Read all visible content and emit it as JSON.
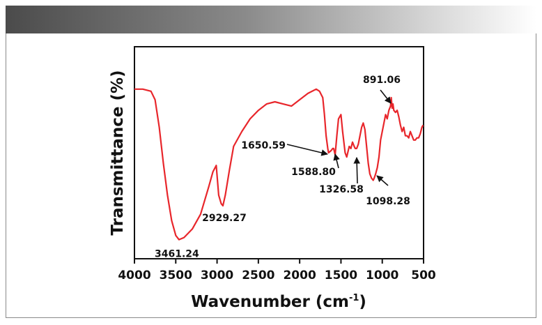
{
  "chart_data": {
    "type": "line",
    "title": "",
    "xlabel": "Wavenumber (cm",
    "xlabel_sup": "-1",
    "xlabel_tail": ")",
    "ylabel": "Transmittance (%)",
    "xlim": [
      4000,
      500
    ],
    "ylim": [
      0,
      100
    ],
    "x_reversed": true,
    "y_ticks_shown": false,
    "x_ticks": [
      4000,
      3500,
      3000,
      2500,
      2000,
      1500,
      1000,
      500
    ],
    "x_tick_labels": [
      "4000",
      "3500",
      "3000",
      "2500",
      "2000",
      "1500",
      "1000",
      "500"
    ],
    "line_color": "#e8262b",
    "grid": false,
    "series": [
      {
        "x": [
          4000,
          3900,
          3800,
          3750,
          3700,
          3650,
          3600,
          3550,
          3500,
          3461,
          3400,
          3300,
          3200,
          3100,
          3050,
          3010,
          2980,
          2950,
          2929,
          2900,
          2850,
          2800,
          2700,
          2600,
          2500,
          2400,
          2300,
          2200,
          2100,
          2000,
          1900,
          1800,
          1760,
          1720,
          1700,
          1680,
          1660,
          1650,
          1620,
          1600,
          1589,
          1570,
          1550,
          1530,
          1500,
          1480,
          1450,
          1430,
          1400,
          1380,
          1360,
          1340,
          1327,
          1310,
          1290,
          1270,
          1250,
          1230,
          1210,
          1190,
          1170,
          1150,
          1130,
          1110,
          1098,
          1080,
          1060,
          1040,
          1020,
          1000,
          980,
          960,
          940,
          920,
          900,
          891,
          880,
          870,
          860,
          840,
          820,
          800,
          780,
          760,
          740,
          720,
          700,
          680,
          660,
          640,
          620,
          600,
          580,
          560,
          540,
          520,
          505
        ],
        "y": [
          80,
          80,
          79,
          75,
          62,
          45,
          30,
          18,
          11,
          9,
          10,
          14,
          21,
          34,
          41,
          44,
          30,
          26,
          25,
          30,
          42,
          53,
          60,
          66,
          70,
          73,
          74,
          73,
          72,
          75,
          78,
          80,
          79,
          76,
          68,
          58,
          52,
          50,
          51,
          52,
          52,
          49,
          58,
          66,
          68,
          60,
          50,
          48,
          53,
          52,
          55,
          53,
          52,
          52,
          54,
          58,
          62,
          64,
          61,
          53,
          45,
          40,
          38,
          37,
          38,
          40,
          43,
          48,
          56,
          60,
          64,
          68,
          66,
          70,
          72,
          76,
          71,
          73,
          70,
          69,
          70,
          67,
          63,
          60,
          62,
          58,
          58,
          57,
          60,
          58,
          56,
          56,
          57,
          57,
          59,
          62,
          63
        ]
      }
    ],
    "annotations": [
      {
        "text": "3461.24",
        "x": 3461,
        "y": 9,
        "arrow": false
      },
      {
        "text": "2929.27",
        "x": 2929,
        "y": 25,
        "arrow": false
      },
      {
        "text": "1650.59",
        "x": 1650,
        "y": 50,
        "arrow": true
      },
      {
        "text": "1588.80",
        "x": 1589,
        "y": 52,
        "arrow": true
      },
      {
        "text": "1326.58",
        "x": 1327,
        "y": 52,
        "arrow": true
      },
      {
        "text": "1098.28",
        "x": 1098,
        "y": 38,
        "arrow": true
      },
      {
        "text": "891.06",
        "x": 891,
        "y": 76,
        "arrow": true
      }
    ]
  }
}
